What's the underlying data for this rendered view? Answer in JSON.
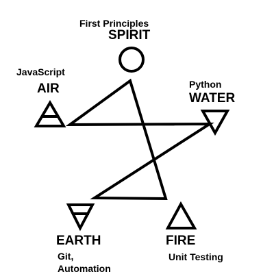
{
  "diagram": {
    "spirit": {
      "element": "SPIRIT",
      "subtitle": "First Principles",
      "icon": "circle-icon"
    },
    "air": {
      "element": "AIR",
      "subtitle": "JavaScript",
      "icon": "air-triangle-icon"
    },
    "water": {
      "element": "WATER",
      "subtitle": "Python",
      "icon": "water-triangle-icon"
    },
    "earth": {
      "element": "EARTH",
      "subtitle_line1": "Git,",
      "subtitle_line2": "Automation",
      "icon": "earth-triangle-icon"
    },
    "fire": {
      "element": "FIRE",
      "subtitle": "Unit Testing",
      "icon": "fire-triangle-icon"
    },
    "colors": {
      "stroke": "#000000",
      "background": "#ffffff"
    }
  }
}
